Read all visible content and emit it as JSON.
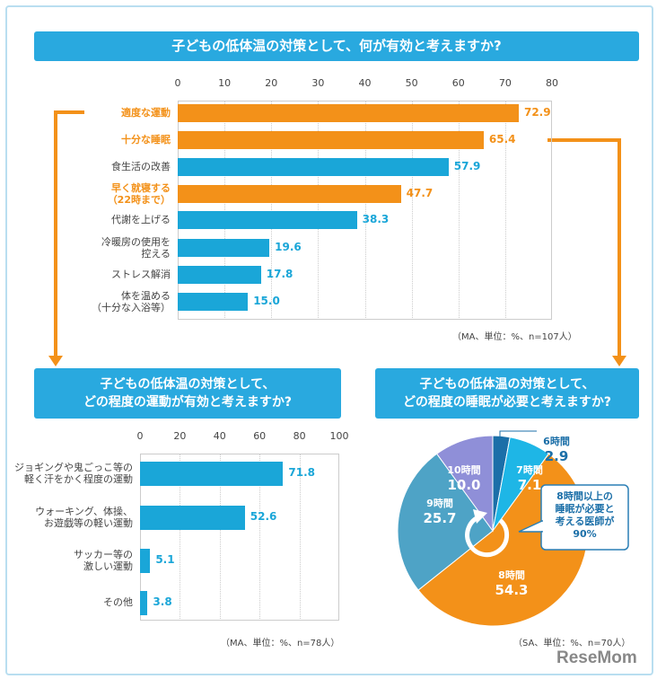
{
  "chart_data": [
    {
      "type": "bar",
      "orientation": "horizontal",
      "title": "子どもの低体温の対策として、何が有効と考えますか?",
      "categories": [
        "適度な運動",
        "十分な睡眠",
        "食生活の改善",
        "早く就寝する\n（22時まで）",
        "代謝を上げる",
        "冷暖房の使用を\n控える",
        "ストレス解消",
        "体を温める\n（十分な入浴等）"
      ],
      "values": [
        72.9,
        65.4,
        57.9,
        47.7,
        38.3,
        19.6,
        17.8,
        15.0
      ],
      "value_labels": [
        "72.9",
        "65.4",
        "57.9",
        "47.7",
        "38.3",
        "19.6",
        "17.8",
        "15.0"
      ],
      "highlighted": [
        true,
        true,
        false,
        true,
        false,
        false,
        false,
        false
      ],
      "xlim": [
        0,
        80
      ],
      "ticks": [
        "0",
        "10",
        "20",
        "30",
        "40",
        "50",
        "60",
        "70",
        "80"
      ],
      "note": "（MA、単位：%、n=107人）"
    },
    {
      "type": "bar",
      "orientation": "horizontal",
      "title": "子どもの低体温の対策として、\nどの程度の運動が有効と考えますか?",
      "categories": [
        "ジョギングや鬼ごっこ等の\n軽く汗をかく程度の運動",
        "ウォーキング、体操、\nお遊戯等の軽い運動",
        "サッカー等の\n激しい運動",
        "その他"
      ],
      "values": [
        71.8,
        52.6,
        5.1,
        3.8
      ],
      "value_labels": [
        "71.8",
        "52.6",
        "5.1",
        "3.8"
      ],
      "xlim": [
        0,
        100
      ],
      "ticks": [
        "0",
        "20",
        "40",
        "60",
        "80",
        "100"
      ],
      "note": "（MA、単位：%、n=78人）"
    },
    {
      "type": "pie",
      "title": "子どもの低体温の対策として、\nどの程度の睡眠が必要と考えますか?",
      "slices": [
        {
          "label": "6時間",
          "value": 2.9,
          "value_label": "2.9",
          "color": "#1b6fa8"
        },
        {
          "label": "7時間",
          "value": 7.1,
          "value_label": "7.1",
          "color": "#1eb6e6"
        },
        {
          "label": "8時間",
          "value": 54.3,
          "value_label": "54.3",
          "color": "#f39119"
        },
        {
          "label": "9時間",
          "value": 25.7,
          "value_label": "25.7",
          "color": "#4ea3c6"
        },
        {
          "label": "10時間",
          "value": 10.0,
          "value_label": "10.0",
          "color": "#8f8fd8"
        }
      ],
      "callout": "8時間以上の\n睡眠が必要と\n考える医師が\n90%",
      "note": "（SA、単位：%、n=70人）"
    }
  ],
  "colors": {
    "highlight": "#f39119",
    "bar": "#1aa6d8",
    "title_bg": "#29a9df"
  },
  "logo": "ReseMom"
}
